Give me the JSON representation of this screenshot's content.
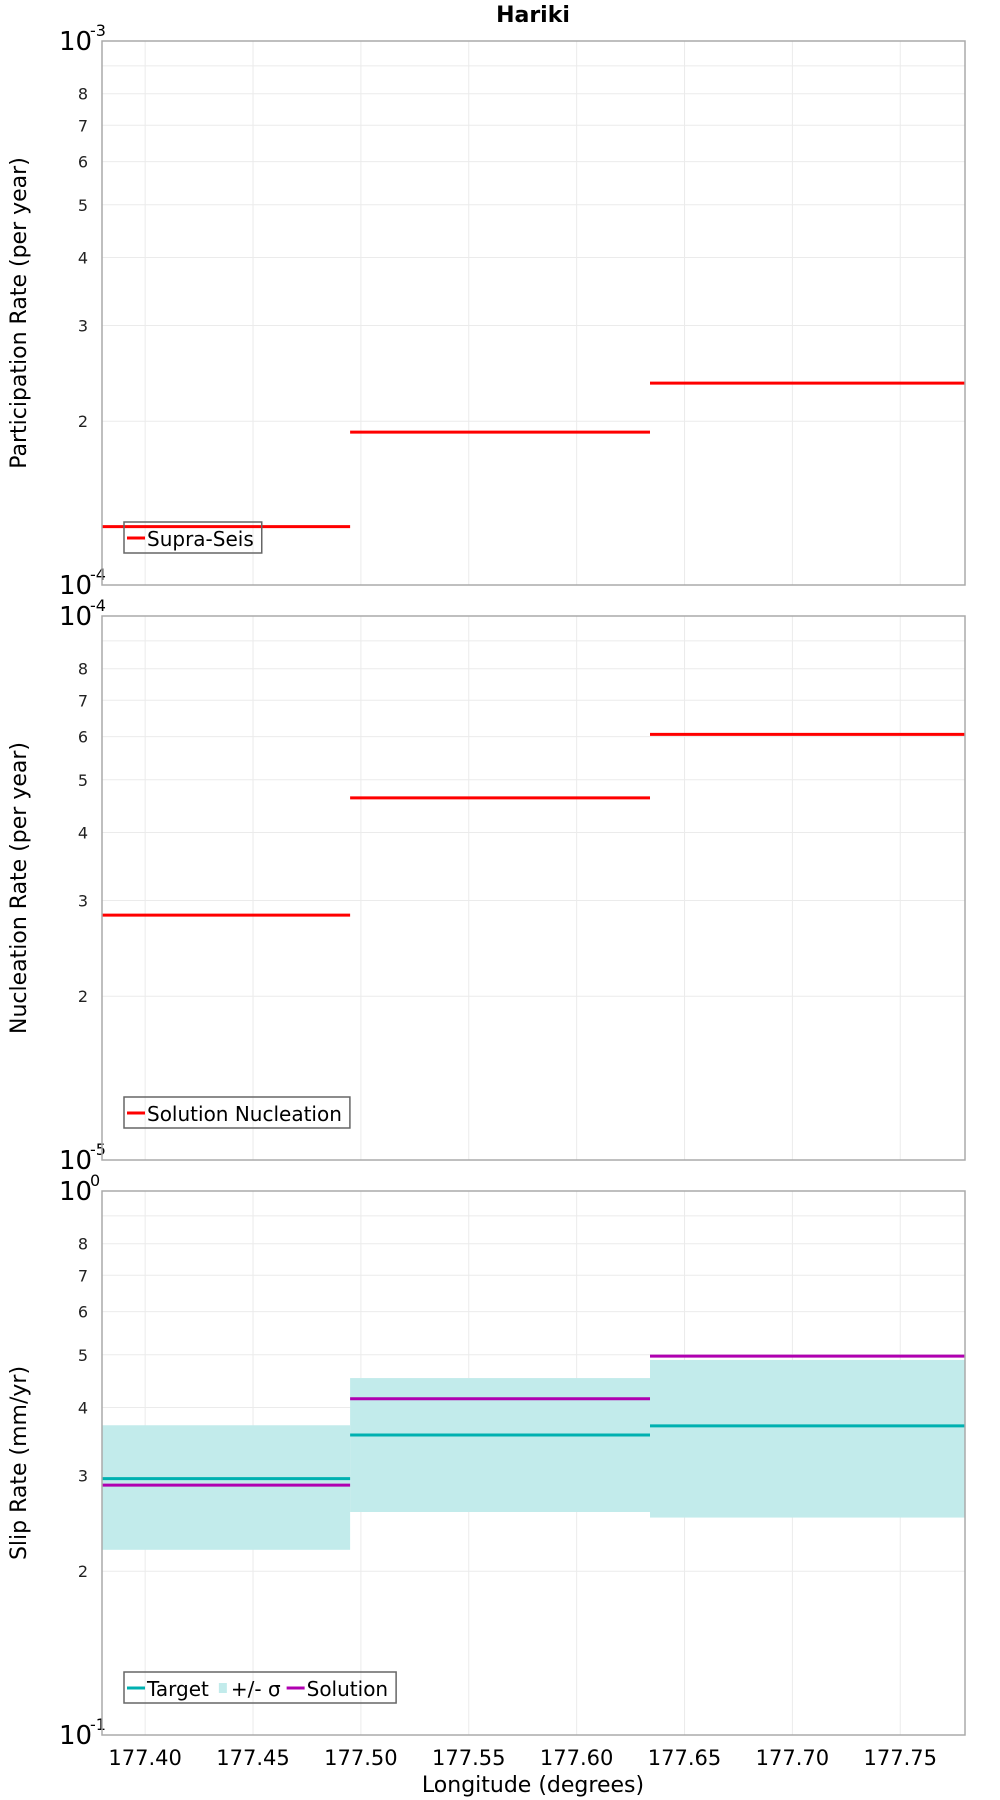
{
  "chart_data": [
    {
      "type": "line",
      "title": "Hariki",
      "ylabel": "Participation Rate (per year)",
      "xlabel": "",
      "yscale": "log",
      "ylim": [
        0.0001,
        0.001
      ],
      "xlim": [
        177.38,
        177.78
      ],
      "y_decade_labels": [
        {
          "base": "10",
          "exp": "-4"
        },
        {
          "base": "10",
          "exp": "-3"
        }
      ],
      "y_minor_labels": [
        "2",
        "3",
        "4",
        "5",
        "6",
        "7",
        "8"
      ],
      "grid": true,
      "legend": "bottom-left",
      "series": [
        {
          "name": "Supra-Seis",
          "color": "#ff0000",
          "segments": [
            {
              "x0": 177.38,
              "x1": 177.495,
              "y": 0.000128
            },
            {
              "x0": 177.495,
              "x1": 177.634,
              "y": 0.000191
            },
            {
              "x0": 177.634,
              "x1": 177.78,
              "y": 0.000235
            }
          ]
        }
      ]
    },
    {
      "type": "line",
      "ylabel": "Nucleation Rate (per year)",
      "xlabel": "",
      "yscale": "log",
      "ylim": [
        1e-05,
        0.0001
      ],
      "xlim": [
        177.38,
        177.78
      ],
      "y_decade_labels": [
        {
          "base": "10",
          "exp": "-5"
        },
        {
          "base": "10",
          "exp": "-4"
        }
      ],
      "y_minor_labels": [
        "2",
        "3",
        "4",
        "5",
        "6",
        "7",
        "8"
      ],
      "grid": true,
      "legend": "bottom-left",
      "series": [
        {
          "name": "Solution Nucleation",
          "color": "#ff0000",
          "segments": [
            {
              "x0": 177.38,
              "x1": 177.495,
              "y": 2.82e-05
            },
            {
              "x0": 177.495,
              "x1": 177.634,
              "y": 4.63e-05
            },
            {
              "x0": 177.634,
              "x1": 177.78,
              "y": 6.06e-05
            }
          ]
        }
      ]
    },
    {
      "type": "line",
      "ylabel": "Slip Rate (mm/yr)",
      "xlabel": "Longitude (degrees)",
      "yscale": "log",
      "ylim": [
        0.1,
        1
      ],
      "xlim": [
        177.38,
        177.78
      ],
      "y_decade_labels": [
        {
          "base": "10",
          "exp": "-1"
        },
        {
          "base": "10",
          "exp": "0"
        }
      ],
      "y_minor_labels": [
        "2",
        "3",
        "4",
        "5",
        "6",
        "7",
        "8"
      ],
      "x_ticks": [
        "177.40",
        "177.45",
        "177.50",
        "177.55",
        "177.60",
        "177.65",
        "177.70",
        "177.75"
      ],
      "grid": true,
      "legend": "bottom-left",
      "series": [
        {
          "name": "Target",
          "color": "#00b0b0",
          "segments": [
            {
              "x0": 177.38,
              "x1": 177.495,
              "y": 0.296
            },
            {
              "x0": 177.495,
              "x1": 177.634,
              "y": 0.356
            },
            {
              "x0": 177.634,
              "x1": 177.78,
              "y": 0.37
            }
          ]
        },
        {
          "name": "+/- σ",
          "color": "#c2ebeb",
          "kind": "band",
          "segments": [
            {
              "x0": 177.38,
              "x1": 177.495,
              "low": 0.219,
              "high": 0.371
            },
            {
              "x0": 177.495,
              "x1": 177.634,
              "low": 0.257,
              "high": 0.453
            },
            {
              "x0": 177.634,
              "x1": 177.78,
              "low": 0.251,
              "high": 0.489
            }
          ]
        },
        {
          "name": "Solution",
          "color": "#b000b0",
          "segments": [
            {
              "x0": 177.38,
              "x1": 177.495,
              "y": 0.288
            },
            {
              "x0": 177.495,
              "x1": 177.634,
              "y": 0.415
            },
            {
              "x0": 177.634,
              "x1": 177.78,
              "y": 0.497
            }
          ]
        }
      ]
    }
  ]
}
